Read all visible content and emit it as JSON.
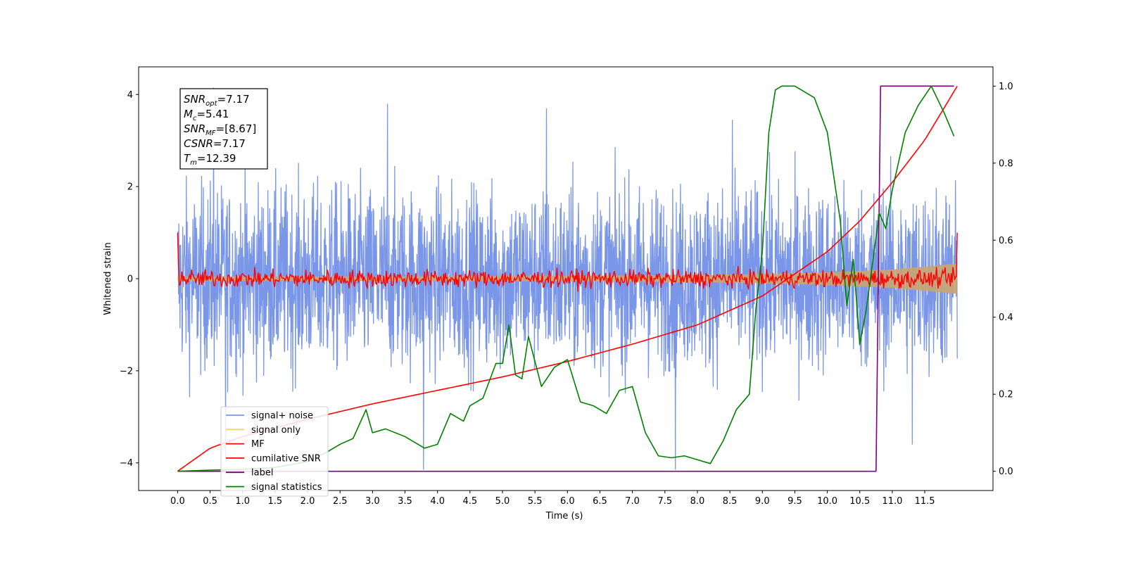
{
  "chart_data": {
    "type": "line",
    "title": "",
    "xlabel": "Time (s)",
    "ylabel": "Whitened strain",
    "xlim": [
      -0.6,
      12.55
    ],
    "ylim_left": [
      -4.6,
      4.6
    ],
    "ylim_right": [
      -0.05,
      1.05
    ],
    "xticks": [
      0.0,
      0.5,
      1.0,
      1.5,
      2.0,
      2.5,
      3.0,
      3.5,
      4.0,
      4.5,
      5.0,
      5.5,
      6.0,
      6.5,
      7.0,
      7.5,
      8.0,
      8.5,
      9.0,
      9.5,
      10.0,
      10.5,
      11.0,
      11.5
    ],
    "xtick_labels": [
      "0.0",
      "0.5",
      "1.0",
      "1.5",
      "2.0",
      "2.5",
      "3.0",
      "3.5",
      "4.0",
      "4.5",
      "5.0",
      "5.5",
      "6.0",
      "6.5",
      "7.0",
      "7.5",
      "8.0",
      "8.5",
      "9.0",
      "9.5",
      "10.0",
      "10.5",
      "11.0",
      "11.5"
    ],
    "yticks_left": [
      4,
      2,
      0,
      -2,
      -4
    ],
    "ytick_labels_left": [
      "4",
      "2",
      "0",
      "−2",
      "−4"
    ],
    "yticks_right": [
      1.0,
      0.8,
      0.6,
      0.4,
      0.2,
      0.0
    ],
    "ytick_labels_right": [
      "1.0",
      "0.8",
      "0.6",
      "0.4",
      "0.2",
      "0.0"
    ],
    "grid": false,
    "legend_position": "lower-left",
    "annotation": [
      {
        "base": "SNR",
        "sub": "opt",
        "rest": "=7.17"
      },
      {
        "base": "M",
        "sub": "c",
        "rest": "=5.41"
      },
      {
        "base": "SNR",
        "sub": "MF",
        "rest": "=[8.67]"
      },
      {
        "base": "CSNR",
        "sub": "",
        "rest": "=7.17"
      },
      {
        "base": "T",
        "sub": "m",
        "rest": "=12.39"
      }
    ],
    "series": [
      {
        "name": "signal+ noise",
        "axis": "left",
        "color": "#7a96e8",
        "kind": "noise",
        "x_range": [
          0.0,
          12.0
        ],
        "amplitude": 1.6,
        "peaks_y": [
          4.15,
          3.8,
          3.7,
          3.45,
          -3.9,
          -4.15,
          -4.15,
          -3.6
        ]
      },
      {
        "name": "signal only",
        "axis": "left",
        "color": "#f5d56b",
        "kind": "envelope",
        "x": [
          0.0,
          3.0,
          6.0,
          8.0,
          9.0,
          10.0,
          11.0,
          12.0
        ],
        "half_width": [
          0.05,
          0.05,
          0.06,
          0.08,
          0.1,
          0.14,
          0.2,
          0.33
        ]
      },
      {
        "name": "MF",
        "axis": "left",
        "color": "#ff0000",
        "kind": "noise",
        "x_range": [
          0.0,
          12.0
        ],
        "amplitude": 0.12,
        "start_value": 1.0,
        "end_value": 1.0
      },
      {
        "name": "cumilative SNR",
        "axis": "right",
        "color": "#ff0000",
        "x": [
          0.0,
          0.5,
          1.0,
          2.0,
          3.0,
          4.0,
          5.0,
          6.0,
          7.0,
          8.0,
          9.0,
          10.0,
          10.5,
          11.0,
          11.5,
          12.0
        ],
        "y": [
          0.0,
          0.06,
          0.09,
          0.135,
          0.175,
          0.21,
          0.245,
          0.285,
          0.33,
          0.38,
          0.455,
          0.57,
          0.65,
          0.75,
          0.86,
          1.0
        ]
      },
      {
        "name": "label",
        "axis": "right",
        "color": "#800080",
        "x": [
          0.0,
          10.75,
          10.82,
          11.95
        ],
        "y": [
          0.0,
          0.0,
          1.0,
          1.0
        ]
      },
      {
        "name": "signal statistics",
        "axis": "right",
        "color": "#008000",
        "x": [
          0.0,
          0.5,
          1.0,
          1.5,
          2.0,
          2.3,
          2.5,
          2.7,
          2.9,
          3.0,
          3.2,
          3.5,
          3.8,
          4.0,
          4.2,
          4.4,
          4.5,
          4.7,
          4.9,
          5.0,
          5.1,
          5.2,
          5.3,
          5.4,
          5.6,
          5.8,
          6.0,
          6.2,
          6.4,
          6.6,
          6.8,
          7.0,
          7.2,
          7.4,
          7.6,
          7.8,
          8.0,
          8.2,
          8.4,
          8.6,
          8.8,
          8.9,
          9.0,
          9.1,
          9.2,
          9.3,
          9.5,
          9.8,
          10.0,
          10.2,
          10.3,
          10.4,
          10.5,
          10.6,
          10.8,
          10.9,
          11.0,
          11.2,
          11.4,
          11.6,
          11.8,
          11.95
        ],
        "y": [
          0.0,
          0.003,
          0.005,
          0.01,
          0.025,
          0.05,
          0.07,
          0.085,
          0.16,
          0.1,
          0.11,
          0.09,
          0.06,
          0.07,
          0.15,
          0.13,
          0.17,
          0.19,
          0.28,
          0.28,
          0.38,
          0.25,
          0.24,
          0.35,
          0.22,
          0.27,
          0.29,
          0.18,
          0.17,
          0.15,
          0.21,
          0.22,
          0.1,
          0.04,
          0.035,
          0.04,
          0.03,
          0.02,
          0.08,
          0.16,
          0.2,
          0.42,
          0.57,
          0.88,
          0.99,
          1.0,
          1.0,
          0.97,
          0.88,
          0.65,
          0.43,
          0.55,
          0.33,
          0.42,
          0.67,
          0.63,
          0.73,
          0.88,
          0.95,
          1.0,
          0.93,
          0.87
        ]
      }
    ]
  }
}
